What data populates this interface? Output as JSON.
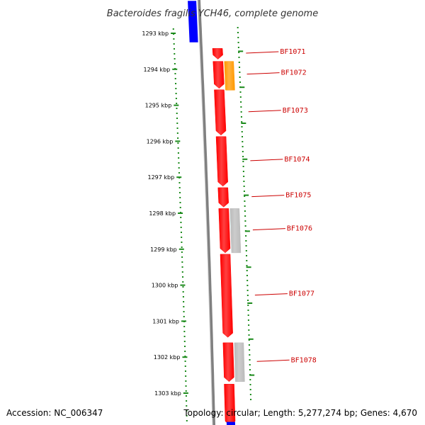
{
  "title": "Bacteroides fragilis YCH46, complete genome",
  "accession": "Accession: NC_006347",
  "summary": "Topology: circular; Length: 5,277,274 bp; Genes: 4,670",
  "colors": {
    "backbone": "#808080",
    "scale_tick": "#1a8a1a",
    "gene_red": "#ff0000",
    "gene_blue": "#0000ff",
    "gene_orange": "#ff9900",
    "gene_grey": "#bbbbbb",
    "label": "#cc0000"
  },
  "kbp_ticks": [
    {
      "kbp": 1293,
      "label": "1293 kbp"
    },
    {
      "kbp": 1294,
      "label": "1294 kbp"
    },
    {
      "kbp": 1295,
      "label": "1295 kbp"
    },
    {
      "kbp": 1296,
      "label": "1296 kbp"
    },
    {
      "kbp": 1297,
      "label": "1297 kbp"
    },
    {
      "kbp": 1298,
      "label": "1298 kbp"
    },
    {
      "kbp": 1299,
      "label": "1299 kbp"
    },
    {
      "kbp": 1300,
      "label": "1300 kbp"
    },
    {
      "kbp": 1301,
      "label": "1301 kbp"
    },
    {
      "kbp": 1302,
      "label": "1302 kbp"
    },
    {
      "kbp": 1303,
      "label": "1303 kbp"
    }
  ],
  "genes": [
    {
      "id": "BF1071",
      "label": "BF1071",
      "start_kbp": 1293.42,
      "end_kbp": 1293.72,
      "strand": "+",
      "color": "#ff0000",
      "labeled": true
    },
    {
      "id": "BF1072",
      "label": "BF1072",
      "start_kbp": 1293.78,
      "end_kbp": 1294.53,
      "strand": "+",
      "color": "#ff0000",
      "labeled": true
    },
    {
      "id": "BF1073",
      "label": "BF1073",
      "start_kbp": 1294.57,
      "end_kbp": 1295.83,
      "strand": "+",
      "color": "#ff0000",
      "labeled": true
    },
    {
      "id": "BF1074",
      "label": "BF1074",
      "start_kbp": 1295.87,
      "end_kbp": 1297.25,
      "strand": "+",
      "color": "#ff0000",
      "labeled": true
    },
    {
      "id": "BF1075",
      "label": "BF1075",
      "start_kbp": 1297.29,
      "end_kbp": 1297.83,
      "strand": "+",
      "color": "#ff0000",
      "labeled": true
    },
    {
      "id": "BF1076",
      "label": "BF1076",
      "start_kbp": 1297.87,
      "end_kbp": 1299.1,
      "strand": "+",
      "color": "#ff0000",
      "labeled": true
    },
    {
      "id": "BF1077",
      "label": "BF1077",
      "start_kbp": 1299.14,
      "end_kbp": 1301.45,
      "strand": "+",
      "color": "#ff0000",
      "labeled": true
    },
    {
      "id": "BF1078",
      "label": "BF1078",
      "start_kbp": 1301.6,
      "end_kbp": 1302.68,
      "strand": "+",
      "color": "#ff0000",
      "labeled": true
    },
    {
      "id": "BF1079",
      "label": "",
      "start_kbp": 1302.75,
      "end_kbp": 1303.9,
      "strand": "+",
      "color": "#ff0000",
      "labeled": false
    }
  ],
  "other_strand_features": [
    {
      "id": "blue-top",
      "start_kbp": 1292.1,
      "end_kbp": 1293.25,
      "color": "#0000ff"
    },
    {
      "id": "blue-bottom",
      "start_kbp": 1303.8,
      "end_kbp": 1304.2,
      "color": "#0000ff"
    }
  ],
  "outer_features": [
    {
      "id": "orange-1",
      "start_kbp": 1293.78,
      "end_kbp": 1294.58,
      "color": "#ff9900"
    },
    {
      "id": "grey-1",
      "start_kbp": 1297.87,
      "end_kbp": 1299.1,
      "color": "#bbbbbb"
    },
    {
      "id": "grey-2",
      "start_kbp": 1301.6,
      "end_kbp": 1302.68,
      "color": "#bbbbbb"
    }
  ]
}
